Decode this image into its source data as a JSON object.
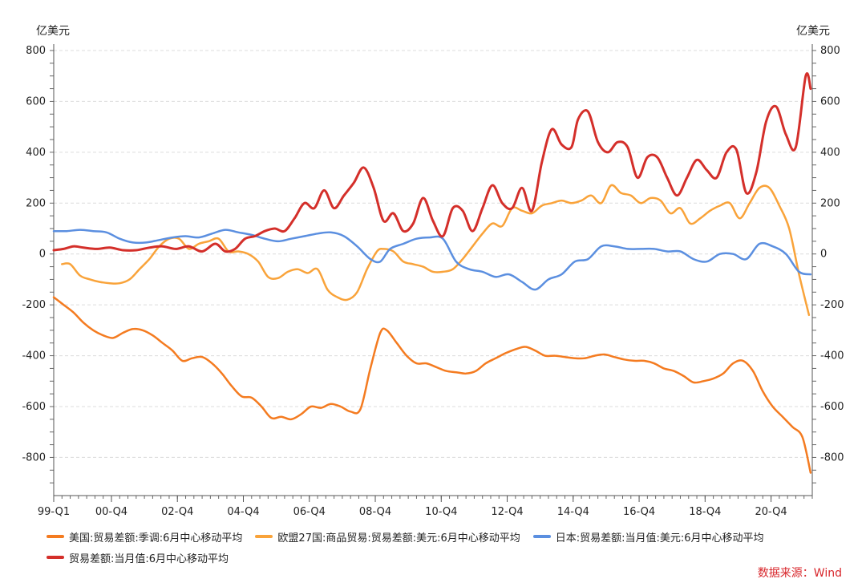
{
  "chart_data": {
    "type": "line",
    "unit_left": "亿美元",
    "unit_right": "亿美元",
    "ylim": [
      -950,
      800
    ],
    "y_ticks": [
      800,
      600,
      400,
      200,
      0,
      -200,
      -400,
      -600,
      -800
    ],
    "x_ticks": [
      "99-Q1",
      "00-Q4",
      "02-Q4",
      "04-Q4",
      "06-Q4",
      "08-Q4",
      "10-Q4",
      "12-Q4",
      "14-Q4",
      "16-Q4",
      "18-Q4",
      "20-Q4"
    ],
    "x_tick_positions": [
      1999.0,
      2000.75,
      2002.75,
      2004.75,
      2006.75,
      2008.75,
      2010.75,
      2012.75,
      2014.75,
      2016.75,
      2018.75,
      2020.75
    ],
    "xlim": [
      1999.0,
      2022.0
    ],
    "grid": true,
    "series": [
      {
        "name": "美国:贸易差额:季调:6月中心移动平均",
        "color": "#f47b20",
        "x": [
          1999.0,
          1999.3,
          1999.6,
          1999.9,
          2000.2,
          2000.5,
          2000.8,
          2001.1,
          2001.4,
          2001.7,
          2002.0,
          2002.3,
          2002.6,
          2002.9,
          2003.2,
          2003.5,
          2003.8,
          2004.1,
          2004.4,
          2004.7,
          2005.0,
          2005.3,
          2005.6,
          2005.9,
          2006.2,
          2006.5,
          2006.8,
          2007.1,
          2007.4,
          2007.7,
          2008.0,
          2008.3,
          2008.6,
          2008.9,
          2009.1,
          2009.4,
          2009.7,
          2010.0,
          2010.3,
          2010.6,
          2010.9,
          2011.2,
          2011.5,
          2011.8,
          2012.1,
          2012.4,
          2012.7,
          2013.0,
          2013.3,
          2013.6,
          2013.9,
          2014.2,
          2014.5,
          2014.8,
          2015.1,
          2015.4,
          2015.7,
          2016.0,
          2016.3,
          2016.6,
          2016.9,
          2017.2,
          2017.5,
          2017.8,
          2018.1,
          2018.4,
          2018.7,
          2019.0,
          2019.3,
          2019.6,
          2019.9,
          2020.2,
          2020.5,
          2020.8,
          2021.1,
          2021.4,
          2021.7,
          2021.95
        ],
        "values": [
          -170,
          -200,
          -230,
          -270,
          -300,
          -320,
          -330,
          -310,
          -295,
          -300,
          -320,
          -350,
          -380,
          -420,
          -410,
          -405,
          -430,
          -470,
          -520,
          -560,
          -565,
          -600,
          -645,
          -640,
          -650,
          -630,
          -600,
          -605,
          -590,
          -600,
          -620,
          -610,
          -450,
          -310,
          -300,
          -350,
          -400,
          -430,
          -430,
          -445,
          -460,
          -465,
          -470,
          -460,
          -430,
          -410,
          -390,
          -375,
          -365,
          -380,
          -400,
          -400,
          -405,
          -410,
          -410,
          -400,
          -395,
          -405,
          -415,
          -420,
          -420,
          -430,
          -450,
          -460,
          -480,
          -505,
          -500,
          -490,
          -470,
          -430,
          -420,
          -460,
          -540,
          -600,
          -640,
          -680,
          -720,
          -860
        ]
      },
      {
        "name": "欧盟27国:商品贸易:贸易差额:美元:6月中心移动平均",
        "color": "#f9a33a",
        "x": [
          1999.25,
          1999.5,
          1999.8,
          2000.1,
          2000.4,
          2000.7,
          2001.0,
          2001.3,
          2001.6,
          2001.9,
          2002.2,
          2002.5,
          2002.8,
          2003.1,
          2003.4,
          2003.7,
          2004.0,
          2004.3,
          2004.6,
          2004.9,
          2005.2,
          2005.5,
          2005.8,
          2006.1,
          2006.4,
          2006.7,
          2007.0,
          2007.3,
          2007.6,
          2007.9,
          2008.2,
          2008.5,
          2008.8,
          2009.0,
          2009.3,
          2009.6,
          2009.9,
          2010.2,
          2010.5,
          2010.8,
          2011.1,
          2011.4,
          2011.7,
          2012.0,
          2012.3,
          2012.6,
          2012.9,
          2013.2,
          2013.5,
          2013.8,
          2014.1,
          2014.4,
          2014.7,
          2015.0,
          2015.3,
          2015.6,
          2015.9,
          2016.2,
          2016.5,
          2016.8,
          2017.1,
          2017.4,
          2017.7,
          2018.0,
          2018.3,
          2018.6,
          2018.9,
          2019.2,
          2019.5,
          2019.8,
          2020.1,
          2020.4,
          2020.7,
          2021.0,
          2021.3,
          2021.6,
          2021.9
        ],
        "values": [
          -40,
          -40,
          -85,
          -100,
          -110,
          -115,
          -115,
          -100,
          -60,
          -20,
          30,
          60,
          60,
          20,
          40,
          50,
          60,
          10,
          10,
          0,
          -30,
          -90,
          -95,
          -70,
          -60,
          -75,
          -60,
          -140,
          -170,
          -180,
          -150,
          -60,
          10,
          20,
          10,
          -30,
          -40,
          -50,
          -70,
          -70,
          -60,
          -20,
          30,
          80,
          120,
          110,
          180,
          170,
          160,
          190,
          200,
          210,
          200,
          210,
          230,
          200,
          270,
          240,
          230,
          200,
          220,
          210,
          160,
          180,
          120,
          140,
          170,
          190,
          200,
          140,
          200,
          260,
          260,
          190,
          100,
          -80,
          -240
        ]
      },
      {
        "name": "日本:贸易差额:当月值:美元:6月中心移动平均",
        "color": "#5b8fe0",
        "x": [
          1999.0,
          1999.4,
          1999.8,
          2000.2,
          2000.6,
          2001.0,
          2001.4,
          2001.8,
          2002.2,
          2002.6,
          2003.0,
          2003.4,
          2003.8,
          2004.2,
          2004.6,
          2005.0,
          2005.4,
          2005.8,
          2006.2,
          2006.6,
          2007.0,
          2007.4,
          2007.8,
          2008.2,
          2008.6,
          2008.9,
          2009.2,
          2009.6,
          2010.0,
          2010.4,
          2010.8,
          2011.2,
          2011.6,
          2012.0,
          2012.4,
          2012.8,
          2013.2,
          2013.6,
          2014.0,
          2014.4,
          2014.8,
          2015.2,
          2015.6,
          2016.0,
          2016.4,
          2016.8,
          2017.2,
          2017.6,
          2018.0,
          2018.4,
          2018.8,
          2019.2,
          2019.6,
          2020.0,
          2020.4,
          2020.8,
          2021.2,
          2021.6,
          2021.95
        ],
        "values": [
          90,
          90,
          95,
          90,
          85,
          60,
          45,
          45,
          55,
          65,
          70,
          65,
          80,
          95,
          85,
          75,
          60,
          50,
          60,
          70,
          80,
          85,
          70,
          30,
          -20,
          -30,
          20,
          40,
          60,
          65,
          60,
          -30,
          -60,
          -70,
          -90,
          -80,
          -110,
          -140,
          -100,
          -80,
          -30,
          -20,
          30,
          30,
          20,
          20,
          20,
          10,
          10,
          -20,
          -30,
          0,
          0,
          -20,
          40,
          30,
          0,
          -70,
          -80
        ]
      },
      {
        "name": "贸易差额:当月值:6月中心移动平均",
        "color": "#d42f2a",
        "x": [
          1999.0,
          1999.3,
          1999.6,
          1999.9,
          2000.3,
          2000.7,
          2001.1,
          2001.5,
          2001.9,
          2002.3,
          2002.7,
          2003.1,
          2003.5,
          2003.9,
          2004.2,
          2004.5,
          2004.8,
          2005.1,
          2005.4,
          2005.7,
          2006.0,
          2006.3,
          2006.6,
          2006.9,
          2007.2,
          2007.5,
          2007.8,
          2008.1,
          2008.4,
          2008.7,
          2009.0,
          2009.3,
          2009.6,
          2009.9,
          2010.2,
          2010.5,
          2010.8,
          2011.1,
          2011.4,
          2011.7,
          2012.0,
          2012.3,
          2012.6,
          2012.9,
          2013.2,
          2013.5,
          2013.8,
          2014.1,
          2014.4,
          2014.7,
          2014.9,
          2015.2,
          2015.5,
          2015.8,
          2016.1,
          2016.4,
          2016.7,
          2017.0,
          2017.3,
          2017.6,
          2017.9,
          2018.2,
          2018.5,
          2018.8,
          2019.1,
          2019.4,
          2019.7,
          2020.0,
          2020.3,
          2020.6,
          2020.9,
          2021.2,
          2021.5,
          2021.8,
          2021.95
        ],
        "values": [
          15,
          20,
          30,
          25,
          20,
          25,
          15,
          15,
          25,
          30,
          20,
          30,
          10,
          40,
          10,
          20,
          60,
          70,
          90,
          100,
          90,
          140,
          200,
          180,
          250,
          180,
          230,
          280,
          340,
          260,
          130,
          160,
          90,
          120,
          220,
          130,
          70,
          180,
          170,
          90,
          180,
          270,
          200,
          180,
          260,
          170,
          360,
          490,
          430,
          420,
          530,
          560,
          440,
          400,
          440,
          420,
          300,
          380,
          380,
          300,
          230,
          300,
          370,
          330,
          300,
          400,
          410,
          240,
          320,
          520,
          580,
          470,
          420,
          700,
          650
        ]
      }
    ],
    "legend_position": "bottom",
    "source": "数据来源：Wind"
  }
}
